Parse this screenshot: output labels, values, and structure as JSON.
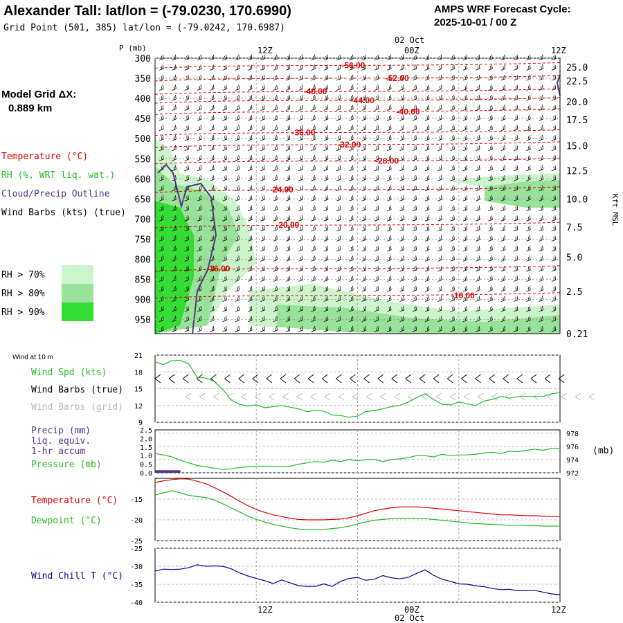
{
  "header": {
    "title": "Alexander Tall:  lat/lon = (-79.0230, 170.6990)",
    "subtitle": "Grid Point (501, 385) lat/lon = (-79.0242, 170.6987)",
    "cycle_label": "AMPS WRF Forecast Cycle:",
    "cycle_value": "2025-10-01 / 00  Z"
  },
  "model_grid": {
    "label": "Model Grid ΔX:",
    "value": "0.889 km"
  },
  "legend": {
    "temperature": "Temperature (°C)",
    "rh": "RH (%, WRT liq. wat.)",
    "cloud": "Cloud/Precip Outline",
    "wind": "Wind Barbs (kts) (true)",
    "rh70": "RH > 70%",
    "rh80": "RH > 80%",
    "rh90": "RH > 90%"
  },
  "colors": {
    "temperature": "#dd0000",
    "rh": "#22bb22",
    "cloud": "#553388",
    "wind": "#000000",
    "rh70": "#ccf5cc",
    "rh80": "#99e299",
    "rh90": "#33dd33",
    "pressure": "#22bb22",
    "precip": "#553388",
    "windchill": "#000099",
    "grid_barb": "#bbbbbb"
  },
  "time_axis": {
    "top_date": "02 Oct",
    "bottom_date": "02 Oct",
    "ticks": [
      "12Z",
      "00Z",
      "12Z"
    ]
  },
  "chart_data": [
    {
      "type": "heatmap",
      "name_label": "sounding",
      "ylabel": "P (mb)",
      "right_label": "Kft MSL",
      "p_ticks": [
        300,
        350,
        400,
        450,
        500,
        550,
        600,
        650,
        700,
        750,
        800,
        850,
        900,
        950
      ],
      "h_ticks": [
        "25.0",
        "22.5",
        "20.0",
        "17.5",
        "15.0",
        "12.5",
        "10.0",
        "7.5",
        "5.0",
        "2.5",
        "0.21"
      ],
      "h_tick_p": [
        322,
        357,
        408,
        453,
        518,
        580,
        650,
        720,
        795,
        880,
        985
      ],
      "xlim_hours": [
        0,
        48
      ],
      "ylim_mb": [
        300,
        985
      ],
      "temp_labels": [
        {
          "text": "-56.00",
          "hour": 23.5,
          "p": 318
        },
        {
          "text": "-52.00",
          "hour": 28.7,
          "p": 350
        },
        {
          "text": "-48.00",
          "hour": 19.0,
          "p": 383
        },
        {
          "text": "-44.00",
          "hour": 24.6,
          "p": 405
        },
        {
          "text": "-40.00",
          "hour": 30.0,
          "p": 433
        },
        {
          "text": "-36.00",
          "hour": 17.6,
          "p": 485
        },
        {
          "text": "-32.00",
          "hour": 23.0,
          "p": 515
        },
        {
          "text": "-28.00",
          "hour": 27.5,
          "p": 556
        },
        {
          "text": "-24.00",
          "hour": 15.0,
          "p": 627
        },
        {
          "text": "-20.00",
          "hour": 15.7,
          "p": 715
        },
        {
          "text": "-16.00",
          "hour": 7.5,
          "p": 823
        },
        {
          "text": "-16.00",
          "hour": 36.5,
          "p": 890
        }
      ]
    },
    {
      "type": "line",
      "name_label": "wind10m",
      "panel_title": "Wind at 10 m",
      "labels": [
        "Wind Spd (kts)",
        "Wind Barbs (true)",
        "Wind Barbs (grid)"
      ],
      "yticks": [
        9,
        12,
        15,
        18,
        21
      ],
      "ylim": [
        9,
        21
      ],
      "x": [
        0,
        1,
        2,
        3,
        4,
        5,
        6,
        7,
        8,
        9,
        10,
        11,
        12,
        13,
        14,
        15,
        16,
        17,
        18,
        19,
        20,
        21,
        22,
        23,
        24,
        25,
        26,
        27,
        28,
        29,
        30,
        31,
        32,
        33,
        34,
        35,
        36,
        37,
        38,
        39,
        40,
        41,
        42,
        43,
        44,
        45,
        46,
        47,
        48
      ],
      "series": [
        {
          "values": [
            19.8,
            19.3,
            20.0,
            20.1,
            19.4,
            17.0,
            16.9,
            16.3,
            14.9,
            13.0,
            12.2,
            11.9,
            12.1,
            11.6,
            11.8,
            12.0,
            11.7,
            11.4,
            10.9,
            11.1,
            11.0,
            10.3,
            10.2,
            9.9,
            10.1,
            10.9,
            11.1,
            11.4,
            11.8,
            12.0,
            12.6,
            13.4,
            14.1,
            13.1,
            12.2,
            12.1,
            12.6,
            12.3,
            12.0,
            12.8,
            13.1,
            13.6,
            13.3,
            13.6,
            13.6,
            13.6,
            13.6,
            14.1,
            14.3
          ]
        }
      ]
    },
    {
      "type": "line",
      "name_label": "precip_pressure",
      "labels": [
        "Precip (mm)",
        "liq. equiv.",
        "1-hr accum",
        "Pressure (mb)"
      ],
      "left_ticks": [
        "0.0",
        "0.5",
        "1.0",
        "1.5",
        "2.0",
        "2.5"
      ],
      "left_ylim": [
        0,
        2.5
      ],
      "right_ticks": [
        972,
        974,
        976,
        978
      ],
      "right_ylim": [
        972,
        978.5
      ],
      "right_unit": "(mb)",
      "pressure": [
        974.9,
        974.7,
        974.4,
        973.9,
        973.5,
        973.1,
        972.9,
        972.7,
        972.5,
        972.6,
        972.8,
        972.9,
        973.0,
        973.0,
        973.0,
        972.9,
        973.0,
        973.3,
        973.5,
        973.7,
        973.6,
        973.9,
        973.7,
        974.0,
        973.8,
        974.0,
        974.0,
        973.7,
        974.0,
        974.1,
        974.3,
        974.6,
        974.6,
        974.4,
        974.8,
        974.6,
        974.7,
        974.7,
        974.8,
        975.0,
        975.1,
        974.9,
        975.3,
        975.2,
        975.4,
        975.6,
        975.4,
        975.7,
        975.7
      ],
      "precip_bars": [
        {
          "hour_start": 0,
          "hour_end": 3,
          "value": 0.15
        }
      ]
    },
    {
      "type": "line",
      "name_label": "temp_dew",
      "labels": [
        "Temperature (°C)",
        "Dewpoint (°C)"
      ],
      "yticks": [
        -25,
        -20,
        -15
      ],
      "ylim": [
        -25,
        -10
      ],
      "x": [
        0,
        1,
        2,
        3,
        4,
        5,
        6,
        7,
        8,
        9,
        10,
        11,
        12,
        13,
        14,
        15,
        16,
        17,
        18,
        19,
        20,
        21,
        22,
        23,
        24,
        25,
        26,
        27,
        28,
        29,
        30,
        31,
        32,
        33,
        34,
        35,
        36,
        37,
        38,
        39,
        40,
        41,
        42,
        43,
        44,
        45,
        46,
        47,
        48
      ],
      "series": [
        {
          "name": "Temperature",
          "values": [
            -11.0,
            -10.6,
            -10.3,
            -10.1,
            -10.2,
            -10.7,
            -11.3,
            -12.2,
            -13.2,
            -14.3,
            -15.5,
            -16.6,
            -17.5,
            -18.2,
            -18.8,
            -19.2,
            -19.6,
            -19.9,
            -20.0,
            -20.0,
            -20.0,
            -19.9,
            -19.8,
            -19.5,
            -19.0,
            -18.4,
            -17.8,
            -17.4,
            -17.1,
            -16.9,
            -16.9,
            -16.9,
            -17.0,
            -17.2,
            -17.4,
            -17.6,
            -17.8,
            -18.0,
            -18.2,
            -18.4,
            -18.6,
            -18.8,
            -18.8,
            -18.9,
            -19.0,
            -19.0,
            -19.1,
            -19.2,
            -19.2
          ]
        },
        {
          "name": "Dewpoint",
          "values": [
            -14.0,
            -13.5,
            -13.0,
            -13.5,
            -14.1,
            -14.4,
            -14.6,
            -15.2,
            -16.1,
            -17.1,
            -18.1,
            -19.1,
            -19.9,
            -20.5,
            -21.1,
            -21.5,
            -21.9,
            -22.2,
            -22.4,
            -22.4,
            -22.3,
            -22.1,
            -21.9,
            -21.5,
            -21.0,
            -20.5,
            -20.1,
            -19.9,
            -19.7,
            -19.6,
            -19.6,
            -19.6,
            -19.7,
            -19.9,
            -20.1,
            -20.3,
            -20.5,
            -20.7,
            -20.9,
            -21.0,
            -21.1,
            -21.2,
            -21.3,
            -21.3,
            -21.4,
            -21.4,
            -21.5,
            -21.5,
            -21.5
          ]
        }
      ]
    },
    {
      "type": "line",
      "name_label": "windchill",
      "labels": [
        "Wind Chill T (°C)"
      ],
      "yticks": [
        -40,
        -35,
        -30,
        -25
      ],
      "ylim": [
        -40,
        -25
      ],
      "x": [
        0,
        1,
        2,
        3,
        4,
        5,
        6,
        7,
        8,
        9,
        10,
        11,
        12,
        13,
        14,
        15,
        16,
        17,
        18,
        19,
        20,
        21,
        22,
        23,
        24,
        25,
        26,
        27,
        28,
        29,
        30,
        31,
        32,
        33,
        34,
        35,
        36,
        37,
        38,
        39,
        40,
        41,
        42,
        43,
        44,
        45,
        46,
        47,
        48
      ],
      "series": [
        {
          "name": "Wind Chill",
          "values": [
            -31.3,
            -30.8,
            -30.9,
            -30.8,
            -30.4,
            -29.6,
            -30.0,
            -29.9,
            -30.0,
            -30.7,
            -31.8,
            -32.7,
            -33.4,
            -34.0,
            -34.8,
            -33.8,
            -34.6,
            -35.4,
            -35.6,
            -35.6,
            -34.9,
            -35.6,
            -34.2,
            -33.4,
            -33.1,
            -33.9,
            -33.6,
            -32.6,
            -33.2,
            -33.5,
            -33.1,
            -32.0,
            -31.0,
            -32.5,
            -33.6,
            -34.2,
            -34.9,
            -35.0,
            -35.4,
            -35.7,
            -36.2,
            -36.5,
            -36.4,
            -36.8,
            -36.8,
            -36.7,
            -37.2,
            -37.7,
            -37.9
          ]
        }
      ]
    }
  ]
}
